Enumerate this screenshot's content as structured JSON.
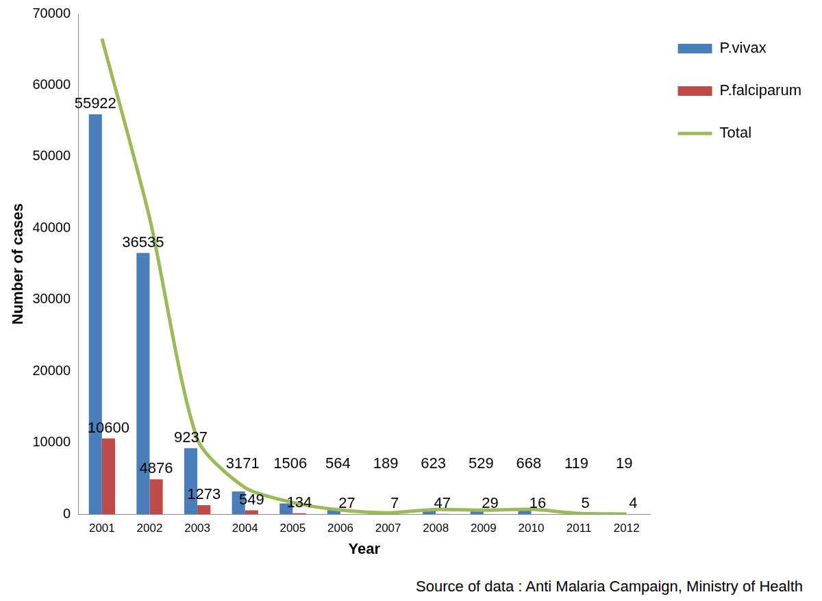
{
  "chart_data": {
    "type": "bar",
    "categories": [
      "2001",
      "2002",
      "2003",
      "2004",
      "2005",
      "2006",
      "2007",
      "2008",
      "2009",
      "2010",
      "2011",
      "2012"
    ],
    "series": [
      {
        "name": "P.vivax",
        "color": "#4a7ebb",
        "data_labels": true,
        "values": [
          55922,
          36535,
          9237,
          3171,
          1506,
          564,
          189,
          623,
          529,
          668,
          119,
          19
        ]
      },
      {
        "name": "P.falciparum",
        "color": "#be4b48",
        "data_labels": true,
        "values": [
          10600,
          4876,
          1273,
          549,
          134,
          27,
          7,
          47,
          29,
          16,
          5,
          4
        ]
      },
      {
        "name": "Total",
        "type": "line",
        "color": "#9bbb59",
        "marker": "none",
        "line_style": "solid",
        "data_labels": false,
        "values": [
          66522,
          41411,
          10510,
          3720,
          1640,
          591,
          196,
          670,
          558,
          684,
          124,
          23
        ]
      }
    ],
    "x_label": "Year",
    "y_label": "Number of cases",
    "ylim": [
      0,
      70000
    ],
    "yticks": [
      0,
      10000,
      20000,
      30000,
      40000,
      50000,
      60000,
      70000
    ],
    "grid": false,
    "legend": "right",
    "annotations": [
      "Source of data : Anti Malaria Campaign, Ministry of Health"
    ]
  }
}
